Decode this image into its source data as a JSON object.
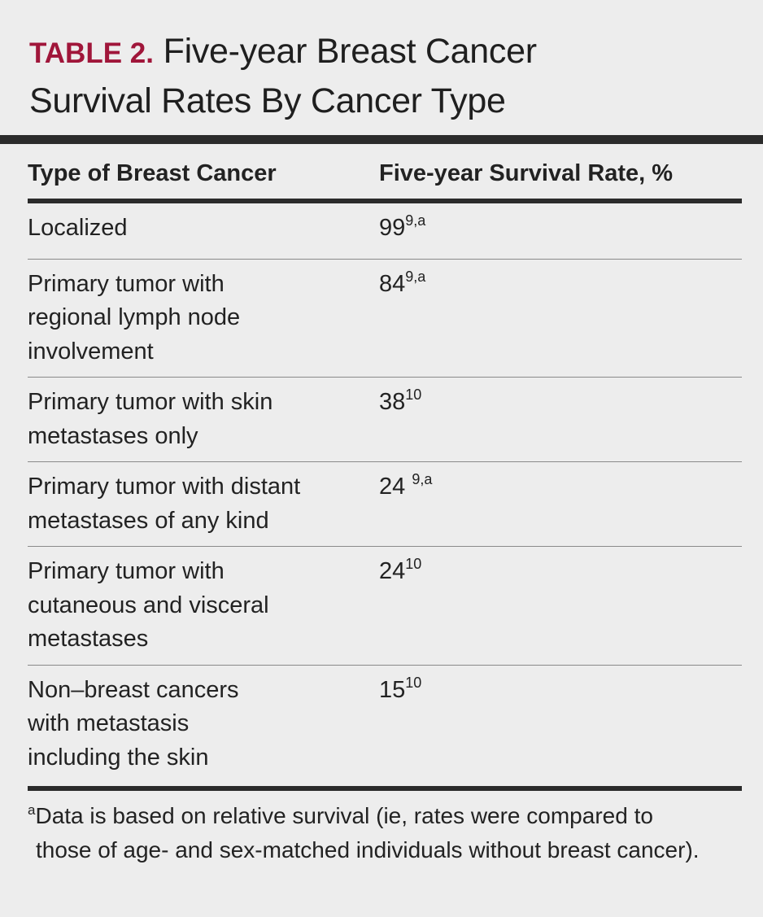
{
  "title": {
    "label": "TABLE 2.",
    "text_line1": "Five-year Breast Cancer",
    "text_line2": "Survival Rates By Cancer Type"
  },
  "table": {
    "headers": [
      "Type of Breast Cancer",
      "Five-year Survival Rate, %"
    ],
    "rows": [
      {
        "type": "Localized",
        "rate": "99",
        "ref": "9,a"
      },
      {
        "type": "Primary tumor with regional lymph node involvement",
        "rate": "84",
        "ref": "9,a"
      },
      {
        "type": "Primary tumor with skin metastases only",
        "rate": "38",
        "ref": "10"
      },
      {
        "type": "Primary tumor with distant metastases of any kind",
        "rate": "24 ",
        "ref": "9,a"
      },
      {
        "type": "Primary tumor with cutaneous and visceral metastases",
        "rate": "24",
        "ref": "10"
      },
      {
        "type": "Non–breast cancers with metastasis including the skin",
        "rate": "15",
        "ref": "10"
      }
    ]
  },
  "footnote": {
    "marker": "a",
    "line1": "Data is based on relative survival (ie, rates were compared to",
    "line2": "those of age- and sex-matched individuals without breast cancer)."
  },
  "colors": {
    "label_red": "#a0163a",
    "rule_dark": "#2b2b2b",
    "background": "#ededed"
  }
}
